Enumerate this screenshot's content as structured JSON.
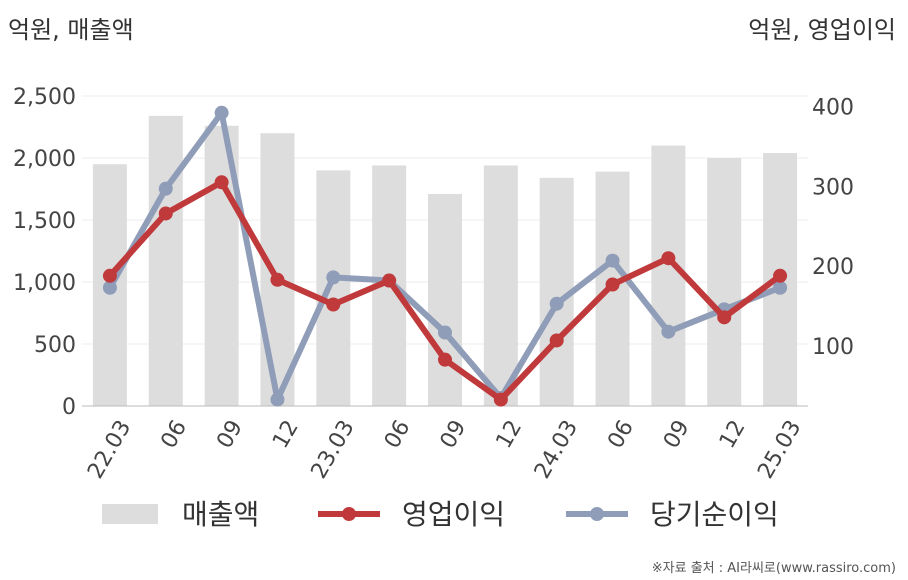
{
  "chart_data": {
    "type": "bar+line",
    "left_axis_label": "억원, 매출액",
    "right_axis_label": "억원, 영업이익",
    "categories": [
      "22.03",
      "06",
      "09",
      "12",
      "23.03",
      "06",
      "09",
      "12",
      "24.03",
      "06",
      "09",
      "12",
      "25.03"
    ],
    "left_ylim": [
      0,
      2500
    ],
    "left_ticks": [
      "0",
      "500",
      "1,000",
      "1,500",
      "2,000",
      "2,500"
    ],
    "right_ylim": [
      25,
      413
    ],
    "right_ticks": [
      "100",
      "200",
      "300",
      "400"
    ],
    "series": [
      {
        "name": "매출액",
        "kind": "bar",
        "axis": "left",
        "color": "#dddddd",
        "values": [
          1950,
          2340,
          2260,
          2200,
          1900,
          1940,
          1710,
          1940,
          1840,
          1890,
          2100,
          2000,
          2040
        ]
      },
      {
        "name": "영업이익",
        "kind": "line",
        "axis": "right",
        "color": "#c0393b",
        "values": [
          188,
          266,
          305,
          183,
          152,
          182,
          83,
          33,
          107,
          177,
          210,
          136,
          188
        ]
      },
      {
        "name": "당기순이익",
        "kind": "line",
        "axis": "right",
        "color": "#8f9db8",
        "values": [
          173,
          297,
          392,
          33,
          186,
          182,
          117,
          35,
          153,
          207,
          118,
          146,
          173
        ]
      }
    ],
    "legend_position": "bottom",
    "grid": true
  },
  "source_note": "※자료 출처 : AI라씨로(www.rassiro.com)"
}
